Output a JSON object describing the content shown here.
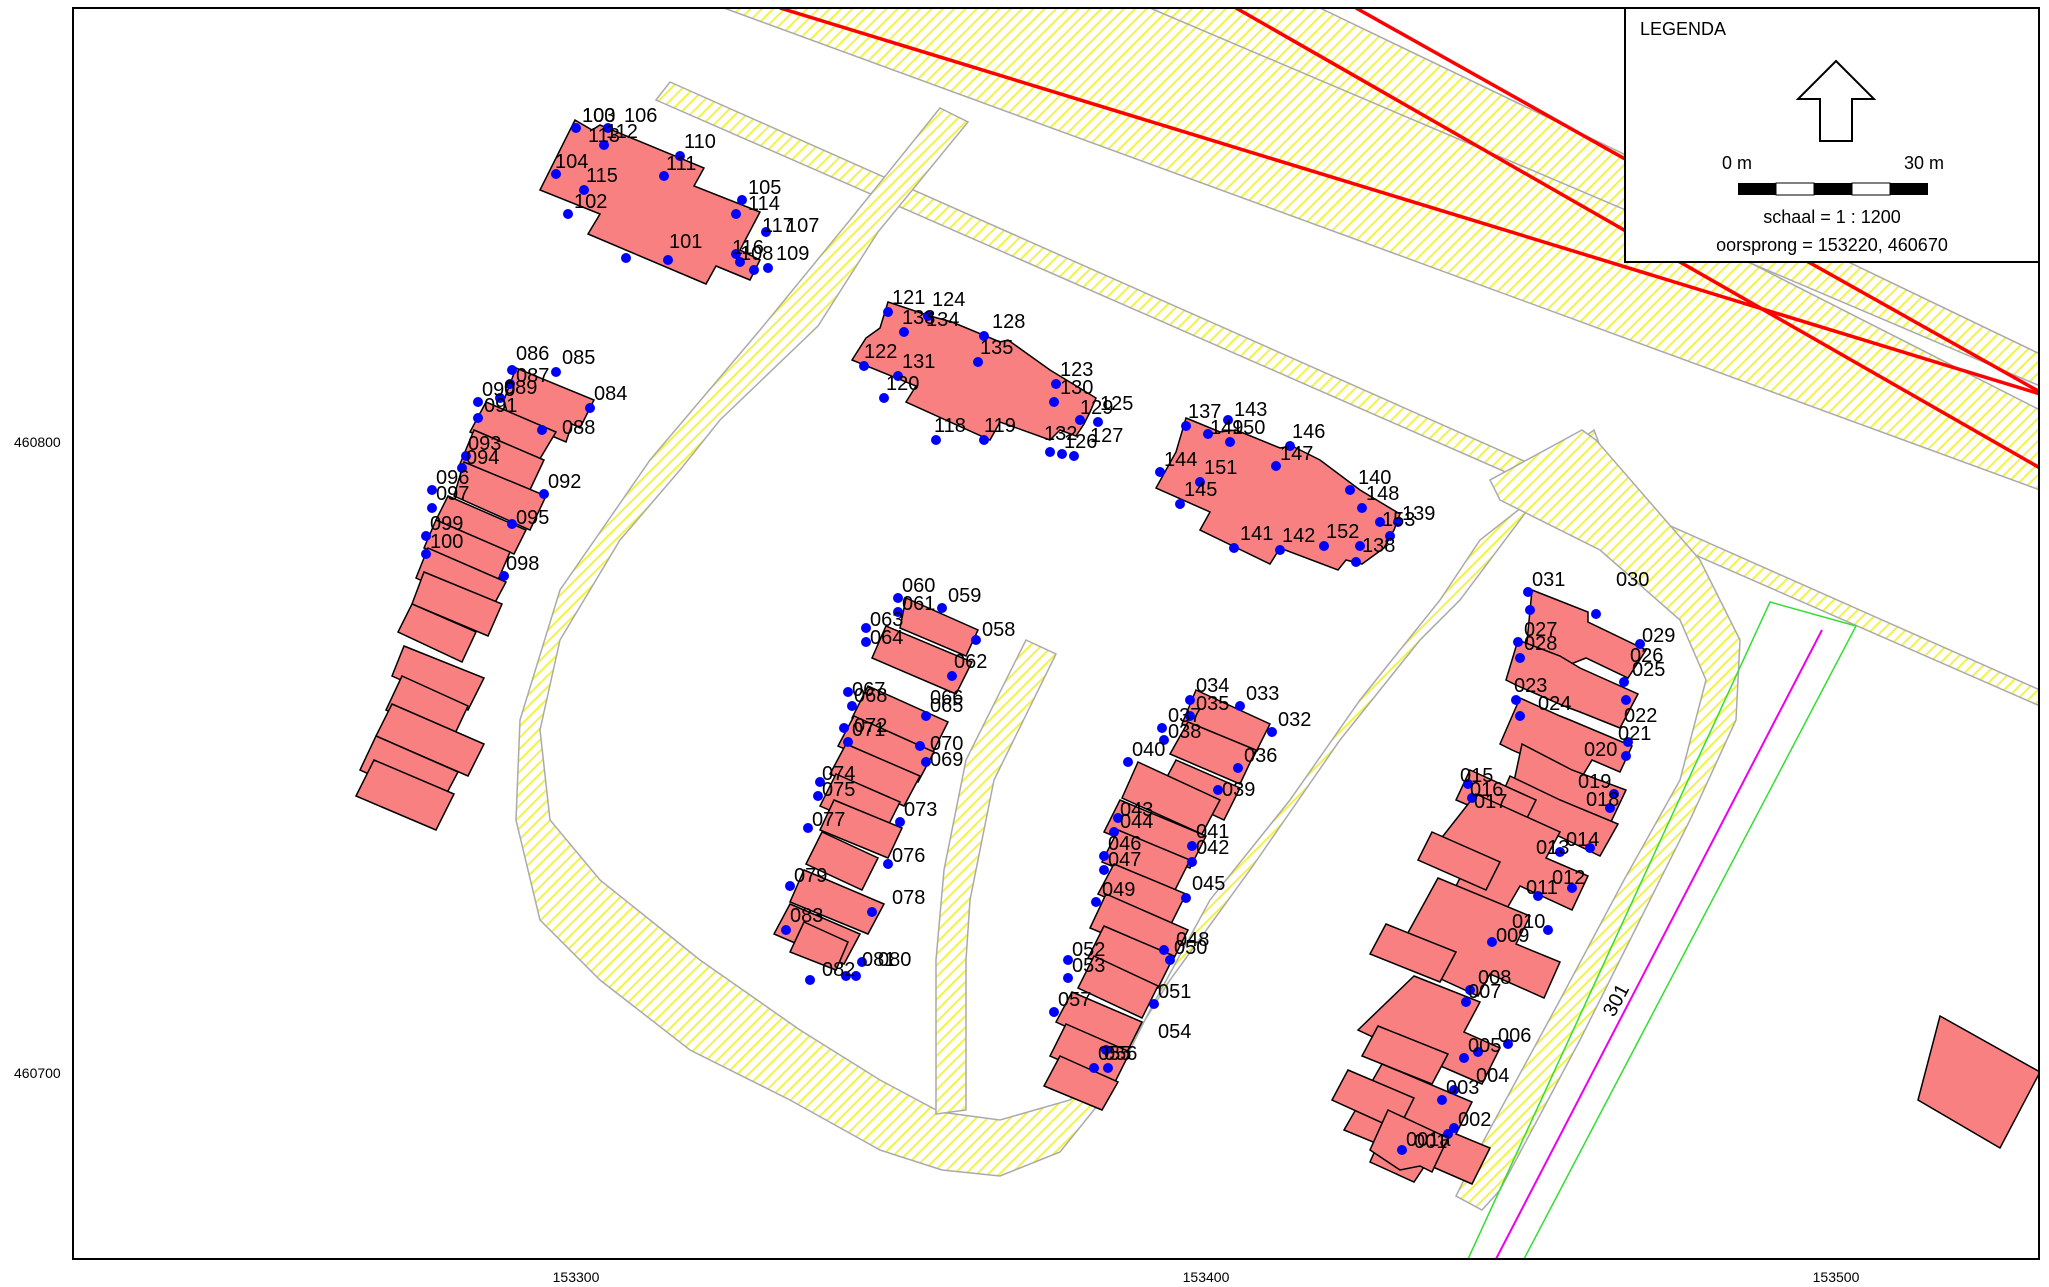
{
  "map": {
    "y_axis_labels": [
      "460800",
      "460700"
    ],
    "x_axis_labels": [
      "153300",
      "153400",
      "153500"
    ],
    "road_label": "301",
    "colors": {
      "building_fill": "#f98080",
      "building_stroke": "#000000",
      "point": "#0000ff",
      "hatch_yellow": "#f2f24a",
      "railway": "#ff0000",
      "boundary_green": "#33dd33",
      "center_line": "#ee00ee"
    },
    "point_labels": [
      "100",
      "101",
      "102",
      "103",
      "104",
      "105",
      "106",
      "107",
      "108",
      "109",
      "110",
      "111",
      "112",
      "113",
      "114",
      "115",
      "116",
      "117",
      "118",
      "119",
      "120",
      "121",
      "122",
      "123",
      "124",
      "125",
      "126",
      "127",
      "128",
      "129",
      "130",
      "131",
      "132",
      "133",
      "134",
      "135",
      "136",
      "137",
      "138",
      "139",
      "140",
      "141",
      "142",
      "143",
      "144",
      "145",
      "146",
      "147",
      "148",
      "149",
      "150",
      "151",
      "152",
      "153",
      "084",
      "085",
      "086",
      "087",
      "088",
      "089",
      "090",
      "091",
      "092",
      "093",
      "094",
      "095",
      "096",
      "097",
      "098",
      "099",
      "100",
      "058",
      "059",
      "060",
      "061",
      "062",
      "063",
      "064",
      "065",
      "066",
      "067",
      "068",
      "069",
      "070",
      "071",
      "072",
      "073",
      "074",
      "075",
      "076",
      "077",
      "078",
      "079",
      "080",
      "081",
      "082",
      "083",
      "032",
      "033",
      "034",
      "035",
      "036",
      "037",
      "038",
      "039",
      "040",
      "041",
      "042",
      "043",
      "044",
      "045",
      "046",
      "047",
      "048",
      "049",
      "050",
      "051",
      "052",
      "053",
      "054",
      "055",
      "056",
      "057",
      "001",
      "001a",
      "002",
      "003",
      "004",
      "005",
      "006",
      "007",
      "008",
      "009",
      "010",
      "011",
      "012",
      "013",
      "014",
      "015",
      "016",
      "017",
      "018",
      "019",
      "020",
      "021",
      "022",
      "023",
      "024",
      "025",
      "026",
      "027",
      "028",
      "029",
      "030",
      "031"
    ]
  },
  "legend": {
    "title": "LEGENDA",
    "north_arrow_icon": "north-arrow-icon",
    "scale_start": "0 m",
    "scale_end": "30 m",
    "scale_text": "schaal = 1 : 1200",
    "origin_text": "oorsprong = 153220, 460670"
  }
}
